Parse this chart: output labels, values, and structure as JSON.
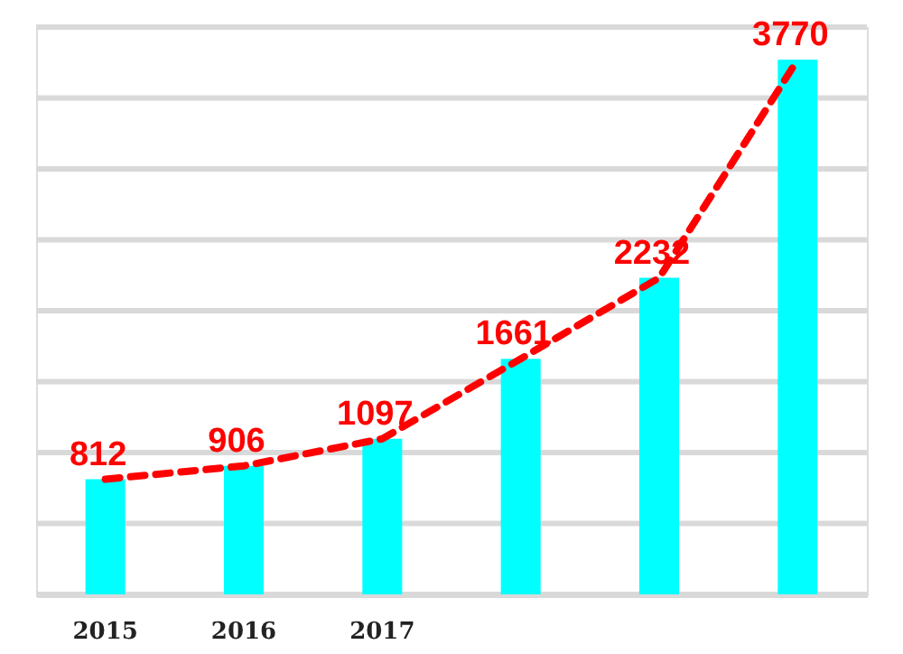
{
  "chart_data": {
    "type": "bar",
    "categories": [
      "2015",
      "2016",
      "2017",
      null,
      null,
      null
    ],
    "series": [
      {
        "color": "#00ffff",
        "values": [
          812,
          906,
          1097,
          1661,
          2232,
          3770
        ],
        "value_labels": [
          "812",
          "906",
          "1097",
          "1661",
          "2232",
          "3770"
        ]
      },
      {
        "type": "line",
        "color": "#ff0000",
        "line_style": "dashed",
        "values": [
          812,
          906,
          1097,
          1661,
          2232,
          3770
        ]
      }
    ],
    "ylim": [
      0,
      4000
    ],
    "yticks": [
      {
        "value": 0,
        "label": null
      },
      {
        "value": 500,
        "label": null
      },
      {
        "value": 1000,
        "label": null
      },
      {
        "value": 1500,
        "label": null
      },
      {
        "value": 2000,
        "label": null
      },
      {
        "value": 2500,
        "label": null
      },
      {
        "value": 3000,
        "label": null
      },
      {
        "value": 3500,
        "label": null
      },
      {
        "value": 4000,
        "label": null
      }
    ],
    "tick_labels": "x",
    "grid": "y"
  }
}
